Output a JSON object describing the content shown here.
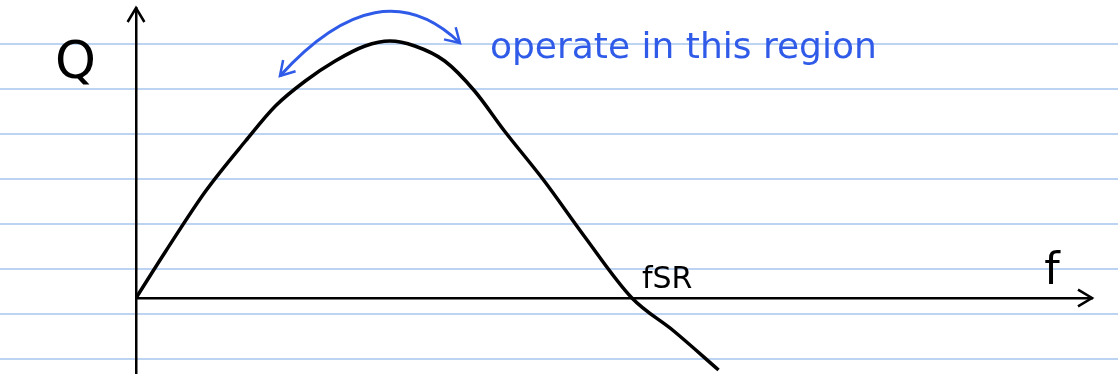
{
  "chart_data": {
    "type": "line",
    "x": [
      0,
      0.3,
      0.7,
      1.1,
      1.4,
      1.7,
      2.0,
      2.3,
      2.55,
      2.8,
      3.1,
      3.4,
      3.7,
      4.1,
      4.5,
      4.98,
      5.4,
      5.85
    ],
    "values": [
      0,
      0.47,
      1.07,
      1.57,
      1.92,
      2.17,
      2.37,
      2.52,
      2.57,
      2.52,
      2.37,
      2.07,
      1.67,
      1.17,
      0.62,
      0,
      -0.33,
      -0.72
    ],
    "color": "#000000",
    "x_label": "f",
    "y_label": "Q",
    "xlim": [
      0,
      9.6
    ],
    "ylim": [
      -0.75,
      2.9
    ],
    "tick_labels": false,
    "grid": false,
    "annotations": [
      {
        "text": "operate in this region",
        "color": "#2f5be8"
      },
      {
        "text": "fSR"
      }
    ]
  }
}
